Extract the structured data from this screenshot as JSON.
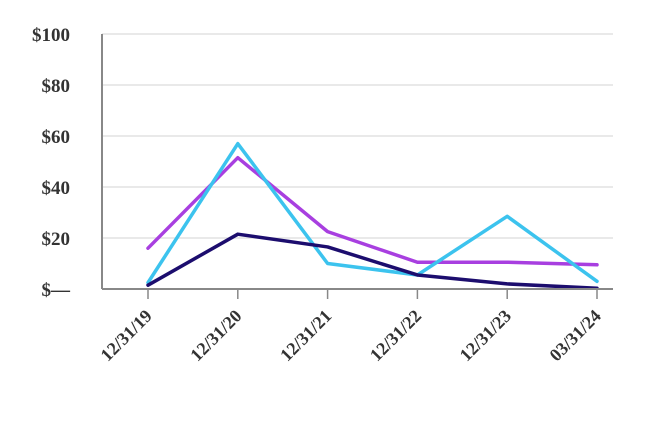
{
  "chart_data": {
    "type": "line",
    "title": "",
    "xlabel": "",
    "ylabel": "",
    "categories": [
      "12/31/19",
      "12/31/20",
      "12/31/21",
      "12/31/22",
      "12/31/23",
      "03/31/24"
    ],
    "y_tick_labels": [
      "$—",
      "$20",
      "$40",
      "$60",
      "$80",
      "$100"
    ],
    "y_ticks": [
      0,
      20,
      40,
      60,
      80,
      100
    ],
    "ylim": [
      0,
      100
    ],
    "grid": true,
    "legend": "none",
    "series": [
      {
        "color": "#a83fe0",
        "values": [
          16,
          51.5,
          22.5,
          10.5,
          10.5,
          9.5
        ]
      },
      {
        "color": "#3cc3ee",
        "values": [
          2.5,
          57,
          10,
          5.5,
          28.5,
          3
        ]
      },
      {
        "color": "#1c0d6e",
        "values": [
          1.5,
          21.5,
          16.5,
          5.5,
          2,
          0.3
        ]
      }
    ]
  }
}
